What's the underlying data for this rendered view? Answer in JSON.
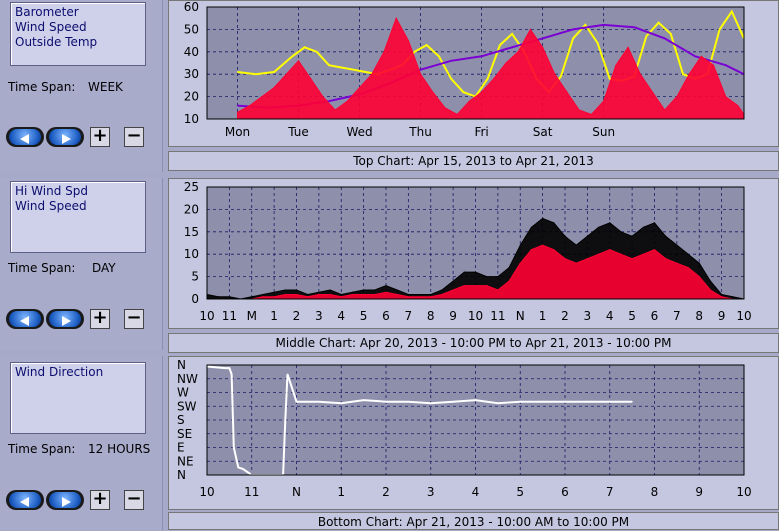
{
  "panels": [
    {
      "legend": [
        "Barometer",
        "Wind Speed",
        "Outside Temp"
      ],
      "timespan_label": "Time Span:",
      "timespan_value": "WEEK",
      "caption": "Top Chart:  Apr 15, 2013  to  Apr 21, 2013"
    },
    {
      "legend": [
        "Hi Wind Spd",
        "Wind Speed"
      ],
      "timespan_label": "Time Span:",
      "timespan_value": "DAY",
      "caption": "Middle Chart:  Apr 20, 2013 - 10:00 PM  to  Apr 21, 2013 - 10:00 PM"
    },
    {
      "legend": [
        "Wind Direction"
      ],
      "timespan_label": "Time Span:",
      "timespan_value": "12 HOURS",
      "caption": "Bottom Chart:  Apr 21, 2013 - 10:00 AM  to  10:00 PM"
    }
  ],
  "buttons": {
    "plus": "+",
    "minus": "−"
  },
  "icons": [
    "arrow-left-icon",
    "arrow-right-icon",
    "plus-icon",
    "minus-icon"
  ],
  "colors": {
    "barometer": "#7a00d4",
    "wind_speed": "#ff0033",
    "outside_temp": "#ffff00",
    "hi_wind": "#000000",
    "wind_dir": "#ffffff",
    "plot_bg": "#8e90ab",
    "grid": "#1a1a66"
  },
  "chart_data": [
    {
      "type": "line",
      "title": "",
      "x_tick_labels": [
        "Mon",
        "Tue",
        "Wed",
        "Thu",
        "Fri",
        "Sat",
        "Sun"
      ],
      "ylim": [
        10,
        60
      ],
      "y_ticks": [
        10,
        20,
        30,
        40,
        50,
        60
      ],
      "grid": true,
      "series": [
        {
          "name": "Outside Temp",
          "color": "#ffff00",
          "x": [
            0,
            0.3,
            0.6,
            0.9,
            1.1,
            1.3,
            1.5,
            1.7,
            1.9,
            2.1,
            2.3,
            2.5,
            2.7,
            2.9,
            3.1,
            3.3,
            3.5,
            3.7,
            3.9,
            4.1,
            4.3,
            4.5,
            4.7,
            4.9,
            5.1,
            5.3,
            5.5,
            5.7,
            5.9,
            6.1,
            6.3,
            6.5,
            6.7,
            6.9,
            7.1,
            7.3,
            7.5,
            7.7,
            7.9,
            8.1,
            8.3
          ],
          "y": [
            31,
            30,
            31,
            38,
            42,
            40,
            34,
            33,
            32,
            31,
            30,
            32,
            34,
            40,
            43,
            38,
            28,
            22,
            20,
            28,
            43,
            48,
            40,
            28,
            22,
            29,
            46,
            52,
            44,
            28,
            27,
            29,
            47,
            53,
            48,
            30,
            28,
            30,
            50,
            58,
            46
          ]
        },
        {
          "name": "Barometer",
          "color": "#7a00d4",
          "x": [
            0,
            0.5,
            1.0,
            1.5,
            2.0,
            2.5,
            3.0,
            3.5,
            4.0,
            4.5,
            5.0,
            5.5,
            6.0,
            6.5,
            7.0,
            7.5,
            8.0,
            8.3
          ],
          "y": [
            16,
            15,
            16,
            18,
            21,
            26,
            32,
            36,
            38,
            42,
            46,
            50,
            52,
            51,
            46,
            38,
            34,
            30
          ]
        },
        {
          "name": "Wind Speed",
          "color": "#ff0033",
          "x": [
            0,
            0.2,
            0.4,
            0.6,
            0.8,
            1.0,
            1.2,
            1.4,
            1.6,
            1.8,
            2.0,
            2.2,
            2.4,
            2.6,
            2.8,
            3.0,
            3.2,
            3.4,
            3.6,
            3.8,
            4.0,
            4.2,
            4.4,
            4.6,
            4.8,
            5.0,
            5.2,
            5.4,
            5.6,
            5.8,
            6.0,
            6.2,
            6.4,
            6.6,
            6.8,
            7.0,
            7.2,
            7.4,
            7.6,
            7.8,
            8.0,
            8.2,
            8.3
          ],
          "y": [
            13,
            16,
            20,
            24,
            30,
            36,
            28,
            20,
            14,
            18,
            24,
            30,
            40,
            55,
            45,
            30,
            22,
            15,
            12,
            18,
            22,
            28,
            35,
            40,
            50,
            42,
            30,
            22,
            14,
            12,
            18,
            34,
            42,
            30,
            22,
            14,
            20,
            30,
            38,
            34,
            20,
            16,
            12
          ]
        }
      ]
    },
    {
      "type": "line",
      "title": "",
      "x_tick_labels": [
        "10",
        "11",
        "M",
        "1",
        "2",
        "3",
        "4",
        "5",
        "6",
        "7",
        "8",
        "9",
        "10",
        "11",
        "N",
        "1",
        "2",
        "3",
        "4",
        "5",
        "6",
        "7",
        "8",
        "9",
        "10"
      ],
      "ylim": [
        0,
        25
      ],
      "y_ticks": [
        0,
        5,
        10,
        15,
        20,
        25
      ],
      "grid": true,
      "series": [
        {
          "name": "Hi Wind Spd",
          "color": "#000000",
          "x": [
            0,
            0.5,
            1,
            1.5,
            2,
            2.5,
            3,
            3.5,
            4,
            4.5,
            5,
            5.5,
            6,
            6.5,
            7,
            7.5,
            8,
            8.5,
            9,
            9.5,
            10,
            10.5,
            11,
            11.5,
            12,
            12.5,
            13,
            13.5,
            14,
            14.5,
            15,
            15.5,
            16,
            16.5,
            17,
            17.5,
            18,
            18.5,
            19,
            19.5,
            20,
            20.5,
            21,
            21.5,
            22,
            22.5,
            23,
            23.5,
            24
          ],
          "y": [
            1,
            0.5,
            0.5,
            0,
            0.5,
            1,
            1.5,
            2,
            2,
            1,
            1.5,
            2,
            1,
            1.5,
            2,
            2,
            3,
            2,
            1,
            1,
            1,
            2,
            4,
            6,
            6,
            5,
            5,
            7,
            12,
            16,
            18,
            17,
            14,
            12,
            14,
            16,
            17,
            15,
            14,
            16,
            17,
            14,
            12,
            10,
            8,
            4,
            1,
            0.5,
            0
          ]
        },
        {
          "name": "Wind Speed",
          "color": "#ff0033",
          "x": [
            0,
            0.5,
            1,
            1.5,
            2,
            2.5,
            3,
            3.5,
            4,
            4.5,
            5,
            5.5,
            6,
            6.5,
            7,
            7.5,
            8,
            8.5,
            9,
            9.5,
            10,
            10.5,
            11,
            11.5,
            12,
            12.5,
            13,
            13.5,
            14,
            14.5,
            15,
            15.5,
            16,
            16.5,
            17,
            17.5,
            18,
            18.5,
            19,
            19.5,
            20,
            20.5,
            21,
            21.5,
            22,
            22.5,
            23,
            23.5,
            24
          ],
          "y": [
            0,
            0,
            0,
            0,
            0,
            0.5,
            0.5,
            1,
            1,
            0.5,
            1,
            1,
            0.5,
            1,
            1,
            1,
            1.5,
            1,
            0.5,
            0.5,
            0.5,
            1,
            2,
            3,
            3,
            3,
            2,
            4,
            8,
            11,
            12,
            11,
            9,
            8,
            9,
            10,
            11,
            10,
            9,
            10,
            11,
            9,
            8,
            7,
            5,
            2,
            0.5,
            0,
            0
          ]
        }
      ]
    },
    {
      "type": "line",
      "title": "",
      "x_tick_labels": [
        "10",
        "11",
        "N",
        "1",
        "2",
        "3",
        "4",
        "5",
        "6",
        "7",
        "8",
        "9",
        "10"
      ],
      "y_tick_labels": [
        "N",
        "NE",
        "E",
        "SE",
        "S",
        "SW",
        "W",
        "NW",
        "N"
      ],
      "ylim": [
        0,
        360
      ],
      "grid": true,
      "series": [
        {
          "name": "Wind Direction",
          "color": "#ffffff",
          "x": [
            0,
            0.4,
            0.5,
            0.55,
            0.6,
            0.7,
            0.8,
            1.0,
            1.2,
            1.4,
            1.7,
            1.75,
            1.8,
            2.0,
            2.5,
            3.0,
            3.5,
            4.0,
            4.5,
            5.0,
            5.5,
            6.0,
            6.5,
            7.0,
            7.5,
            8.0,
            8.5,
            9.0,
            9.5
          ],
          "y": [
            355,
            350,
            350,
            330,
            90,
            25,
            20,
            0,
            0,
            0,
            0,
            180,
            330,
            240,
            240,
            235,
            245,
            240,
            240,
            235,
            240,
            245,
            235,
            240,
            240,
            240,
            240,
            240,
            240
          ]
        }
      ]
    }
  ]
}
